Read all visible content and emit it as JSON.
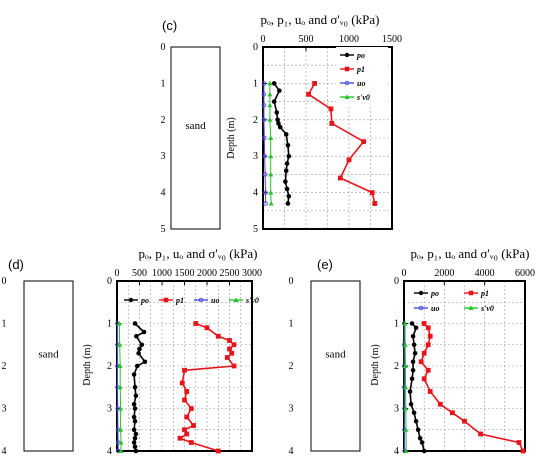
{
  "legend_labels": {
    "po": "po",
    "p1": "p1",
    "uo": "uo",
    "svo": "s'v0"
  },
  "colors": {
    "po": "#000000",
    "p1": "#e8141c",
    "uo": "#4a4ad8",
    "svo": "#22c42a"
  },
  "chart_data": [
    {
      "panel_label": "(c)",
      "type": "line",
      "title": "pₒ, p₁, uₒ and σ'ᵥ₀ (kPa)",
      "xlabel": "",
      "ylabel": "Depth (m)",
      "x_ticks": [
        "0",
        "500",
        "1000",
        "1500"
      ],
      "y_ticks": [
        "0",
        "1",
        "2",
        "3",
        "4",
        "5"
      ],
      "xlim": [
        0,
        1500
      ],
      "ylim": [
        5,
        0
      ],
      "soil_label": "sand",
      "log_depth_ticks": [
        "0",
        "1",
        "2",
        "3",
        "4",
        "5"
      ],
      "legend_position": "top-right",
      "grid": true,
      "series": [
        {
          "name": "po",
          "key": "po",
          "x": [
            130,
            190,
            130,
            160,
            170,
            180,
            200,
            270,
            290,
            300,
            280,
            270,
            260,
            280,
            300,
            290
          ],
          "y": [
            1.0,
            1.2,
            1.5,
            1.8,
            2.0,
            2.1,
            2.2,
            2.4,
            2.7,
            3.0,
            3.2,
            3.4,
            3.7,
            3.9,
            4.1,
            4.3
          ]
        },
        {
          "name": "p1",
          "key": "p1",
          "x": [
            600,
            530,
            790,
            800,
            1170,
            1000,
            900,
            1270,
            1300
          ],
          "y": [
            1.0,
            1.3,
            1.7,
            2.1,
            2.6,
            3.1,
            3.6,
            4.0,
            4.3
          ]
        },
        {
          "name": "uo",
          "key": "uo",
          "x": [
            10,
            10,
            10,
            10,
            15,
            20,
            25,
            30,
            30
          ],
          "y": [
            1.0,
            1.3,
            1.6,
            2.0,
            2.5,
            3.0,
            3.5,
            4.0,
            4.3
          ]
        },
        {
          "name": "s'v0",
          "key": "svo",
          "x": [
            80,
            80,
            80,
            80,
            90,
            90,
            90,
            90,
            95
          ],
          "y": [
            1.0,
            1.3,
            1.6,
            2.0,
            2.5,
            3.0,
            3.5,
            4.0,
            4.3
          ]
        }
      ]
    },
    {
      "panel_label": "(d)",
      "type": "line",
      "title": "pₒ, p₁, uₒ and σ'ᵥ₀ (kPa)",
      "xlabel": "",
      "ylabel": "Depth (m)",
      "x_ticks": [
        "0",
        "500",
        "1000",
        "1500",
        "2000",
        "2500",
        "3000"
      ],
      "y_ticks": [
        "0",
        "1",
        "2",
        "3",
        "4"
      ],
      "xlim": [
        0,
        3000
      ],
      "ylim": [
        4,
        0
      ],
      "soil_label": "sand",
      "log_depth_ticks": [
        "0",
        "1",
        "2",
        "3",
        "4"
      ],
      "legend_position": "top",
      "grid": true,
      "series": [
        {
          "name": "po",
          "key": "po",
          "x": [
            400,
            600,
            430,
            550,
            500,
            480,
            620,
            450,
            380,
            400,
            420,
            380,
            400,
            380,
            400,
            380,
            420,
            400,
            380,
            400,
            420
          ],
          "y": [
            1.0,
            1.2,
            1.3,
            1.5,
            1.6,
            1.7,
            1.9,
            2.0,
            2.2,
            2.5,
            2.7,
            2.9,
            3.0,
            3.2,
            3.3,
            3.5,
            3.6,
            3.7,
            3.8,
            3.9,
            4.0
          ]
        },
        {
          "name": "p1",
          "key": "p1",
          "x": [
            1750,
            2000,
            2250,
            2500,
            2600,
            2500,
            2550,
            2450,
            2600,
            1500,
            1450,
            1550,
            1500,
            1650,
            1550,
            1700,
            1500,
            1550,
            1400,
            1650,
            2250
          ],
          "y": [
            1.0,
            1.1,
            1.3,
            1.4,
            1.5,
            1.6,
            1.7,
            1.8,
            2.0,
            2.1,
            2.4,
            2.6,
            2.8,
            3.0,
            3.2,
            3.4,
            3.5,
            3.6,
            3.7,
            3.8,
            4.0
          ]
        },
        {
          "name": "uo",
          "key": "uo",
          "x": [
            10,
            10,
            10,
            10,
            15,
            20,
            25,
            30
          ],
          "y": [
            1.0,
            1.5,
            2.0,
            2.5,
            3.0,
            3.5,
            3.8,
            4.0
          ]
        },
        {
          "name": "s'v0",
          "key": "svo",
          "x": [
            50,
            60,
            70,
            70,
            80,
            80,
            90,
            90
          ],
          "y": [
            1.0,
            1.5,
            2.0,
            2.5,
            3.0,
            3.5,
            3.8,
            4.0
          ]
        }
      ]
    },
    {
      "panel_label": "(e)",
      "type": "line",
      "title": "pₒ, p₁, uₒ and σ'ᵥ₀ (kPa)",
      "xlabel": "",
      "ylabel": "Depth (m)",
      "x_ticks": [
        "0",
        "2000",
        "4000",
        "6000"
      ],
      "y_ticks": [
        "0",
        "1",
        "2",
        "3",
        "4"
      ],
      "xlim": [
        0,
        6000
      ],
      "ylim": [
        4,
        0
      ],
      "soil_label": "sand",
      "log_depth_ticks": [
        "0",
        "1",
        "2",
        "3",
        "4"
      ],
      "legend_position": "top",
      "grid": true,
      "series": [
        {
          "name": "po",
          "key": "po",
          "x": [
            400,
            600,
            450,
            500,
            550,
            450,
            450,
            400,
            300,
            350,
            500,
            600,
            700,
            800,
            900,
            1000
          ],
          "y": [
            1.0,
            1.1,
            1.3,
            1.5,
            1.7,
            1.9,
            2.1,
            2.3,
            2.6,
            2.9,
            3.1,
            3.3,
            3.5,
            3.7,
            3.8,
            4.0
          ]
        },
        {
          "name": "p1",
          "key": "p1",
          "x": [
            1000,
            1200,
            1300,
            1200,
            1000,
            850,
            1200,
            1000,
            1300,
            1800,
            2400,
            3000,
            3800,
            5700,
            5900
          ],
          "y": [
            1.0,
            1.1,
            1.3,
            1.5,
            1.7,
            1.9,
            2.1,
            2.3,
            2.6,
            2.9,
            3.1,
            3.3,
            3.6,
            3.8,
            4.0
          ]
        },
        {
          "name": "uo",
          "key": "uo",
          "x": [
            10,
            10,
            10,
            15,
            20,
            25,
            30
          ],
          "y": [
            1.0,
            1.5,
            2.0,
            2.5,
            3.0,
            3.5,
            4.0
          ]
        },
        {
          "name": "s'v0",
          "key": "svo",
          "x": [
            50,
            60,
            70,
            80,
            90,
            100,
            110
          ],
          "y": [
            1.0,
            1.5,
            2.0,
            2.5,
            3.0,
            3.5,
            4.0
          ]
        }
      ]
    }
  ]
}
